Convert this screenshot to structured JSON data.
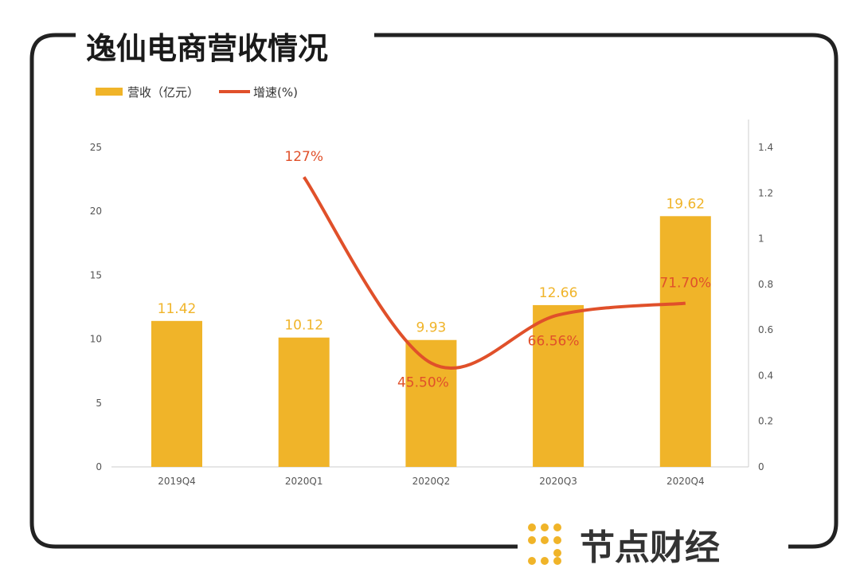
{
  "title": "逸仙电商营收情况",
  "brand": "节点财经",
  "chart_data": {
    "type": "bar+line",
    "categories": [
      "2019Q4",
      "2020Q1",
      "2020Q2",
      "2020Q3",
      "2020Q4"
    ],
    "series": [
      {
        "name": "营收（亿元）",
        "type": "bar",
        "axis": "left",
        "values": [
          11.42,
          10.12,
          9.93,
          12.66,
          19.62
        ],
        "labels": [
          "11.42",
          "10.12",
          "9.93",
          "12.66",
          "19.62"
        ],
        "color": "#f0b429"
      },
      {
        "name": "增速(%)",
        "type": "line",
        "axis": "right",
        "values": [
          null,
          1.27,
          0.455,
          0.6656,
          0.717
        ],
        "labels": [
          "",
          "127%",
          "45.50%",
          "66.56%",
          "71.70%"
        ],
        "color": "#e0502a"
      }
    ],
    "left_axis": {
      "ylim": [
        0,
        25
      ],
      "ticks": [
        "0",
        "5",
        "10",
        "15",
        "20",
        "25"
      ]
    },
    "right_axis": {
      "ylim": [
        0,
        1.4
      ],
      "ticks": [
        "0",
        "0.2",
        "0.4",
        "0.6",
        "0.8",
        "1",
        "1.2",
        "1.4"
      ]
    },
    "legend": "top-left",
    "grid": false
  }
}
